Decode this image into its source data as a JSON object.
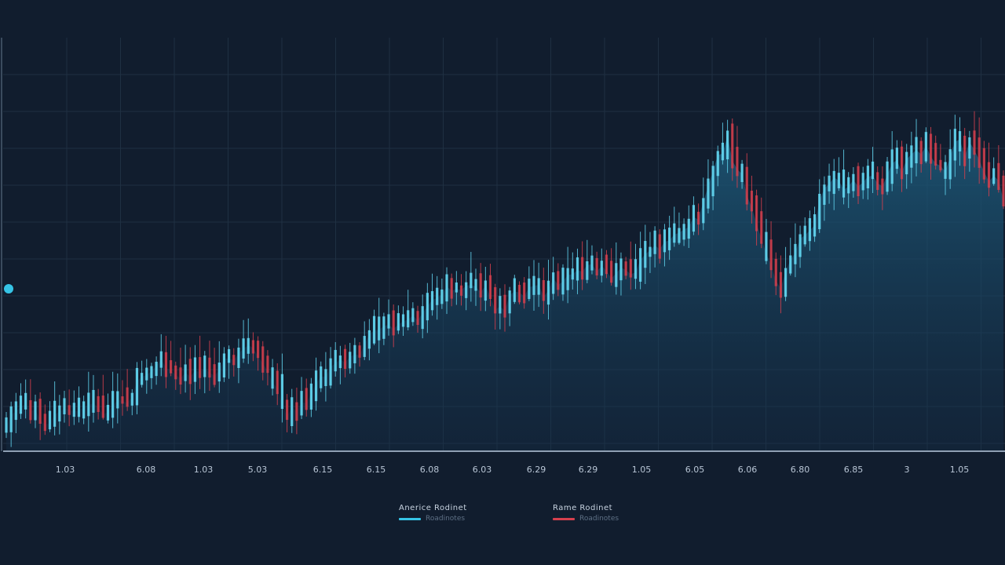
{
  "chart_data": {
    "type": "candlestick",
    "colors": {
      "background": "#111d2e",
      "up": "#5fd0ea",
      "down": "#d6404e",
      "area": "#1d5a7a",
      "grid": "#1f3042",
      "axis": "#8fa0b4",
      "marker": "#36c4e6"
    },
    "grid": true,
    "ylim": [
      0,
      500
    ],
    "x_tick_labels": [
      "1.03",
      "6.08",
      "1.03",
      "5.03",
      "6.15",
      "6.15",
      "6.08",
      "6.03",
      "6.29",
      "6.29",
      "1.05",
      "6.05",
      "6.06",
      "6.80",
      "6.85",
      "3",
      "1.05"
    ],
    "legend_position": "bottom-center",
    "legend": [
      {
        "title": "Anerice Rodinet",
        "subtitle": "Roadinotes",
        "color": "#36c4e6"
      },
      {
        "title": "Rame Rodinet",
        "subtitle": "Roadinotes",
        "color": "#d6404e"
      }
    ],
    "values": [
      30,
      44,
      48,
      54,
      57,
      49,
      50,
      38,
      32,
      34,
      44,
      48,
      51,
      50,
      48,
      49,
      53,
      56,
      58,
      53,
      45,
      47,
      55,
      62,
      61,
      58,
      66,
      85,
      90,
      92,
      97,
      103,
      111,
      101,
      97,
      92,
      88,
      95,
      90,
      97,
      96,
      100,
      95,
      91,
      98,
      112,
      112,
      110,
      118,
      124,
      128,
      125,
      115,
      106,
      97,
      83,
      76,
      57,
      42,
      53,
      48,
      59,
      58,
      70,
      82,
      90,
      90,
      102,
      106,
      111,
      107,
      114,
      117,
      116,
      129,
      141,
      146,
      147,
      151,
      153,
      148,
      153,
      157,
      159,
      164,
      158,
      167,
      175,
      183,
      185,
      190,
      199,
      194,
      196,
      195,
      200,
      201,
      199,
      192,
      200,
      187,
      171,
      175,
      170,
      189,
      193,
      192,
      187,
      198,
      200,
      201,
      187,
      194,
      209,
      201,
      205,
      213,
      214,
      219,
      217,
      225,
      226,
      217,
      224,
      218,
      209,
      215,
      222,
      219,
      214,
      216,
      231,
      238,
      243,
      249,
      244,
      253,
      255,
      262,
      264,
      268,
      271,
      283,
      280,
      302,
      320,
      339,
      358,
      360,
      381,
      351,
      341,
      335,
      309,
      295,
      275,
      257,
      239,
      225,
      206,
      197,
      217,
      231,
      240,
      257,
      261,
      267,
      273,
      302,
      318,
      323,
      331,
      327,
      316,
      320,
      328,
      320,
      325,
      332,
      333,
      324,
      320,
      334,
      348,
      352,
      337,
      353,
      359,
      364,
      359,
      369,
      356,
      348,
      345,
      338,
      356,
      374,
      377,
      356,
      374,
      364,
      352,
      338,
      326,
      333,
      327,
      304
    ]
  }
}
